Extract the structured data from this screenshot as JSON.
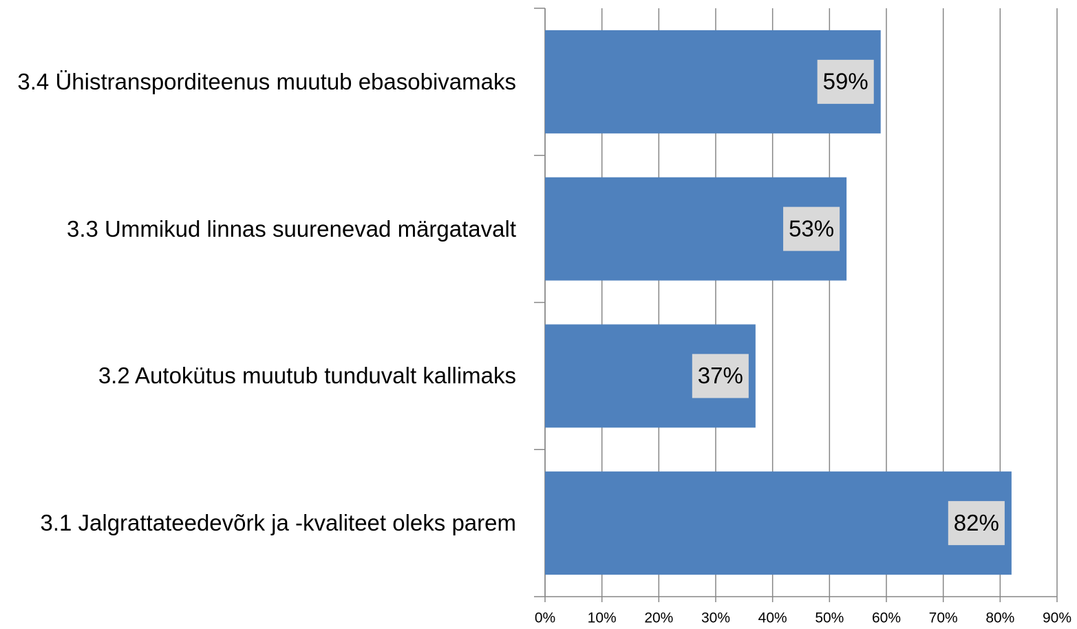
{
  "chart_data": {
    "type": "barh",
    "categories": [
      "3.4 Ühistransporditeenus muutub ebasobivamaks",
      "3.3 Ummikud linnas suurenevad märgatavalt",
      "3.2 Autokütus muutub tunduvalt kallimaks",
      "3.1 Jalgrattateedevõrk ja -kvaliteet oleks parem"
    ],
    "values": [
      59,
      53,
      37,
      82
    ],
    "value_labels": [
      "59%",
      "53%",
      "37%",
      "82%"
    ],
    "color": "#4f81bd",
    "xlim": [
      0,
      90
    ],
    "xticks": [
      {
        "value": 0,
        "label": "0%"
      },
      {
        "value": 10,
        "label": "10%"
      },
      {
        "value": 20,
        "label": "20%"
      },
      {
        "value": 30,
        "label": "30%"
      },
      {
        "value": 40,
        "label": "40%"
      },
      {
        "value": 50,
        "label": "50%"
      },
      {
        "value": 60,
        "label": "60%"
      },
      {
        "value": 70,
        "label": "70%"
      },
      {
        "value": 80,
        "label": "80%"
      },
      {
        "value": 90,
        "label": "90%"
      }
    ],
    "grid": true
  }
}
